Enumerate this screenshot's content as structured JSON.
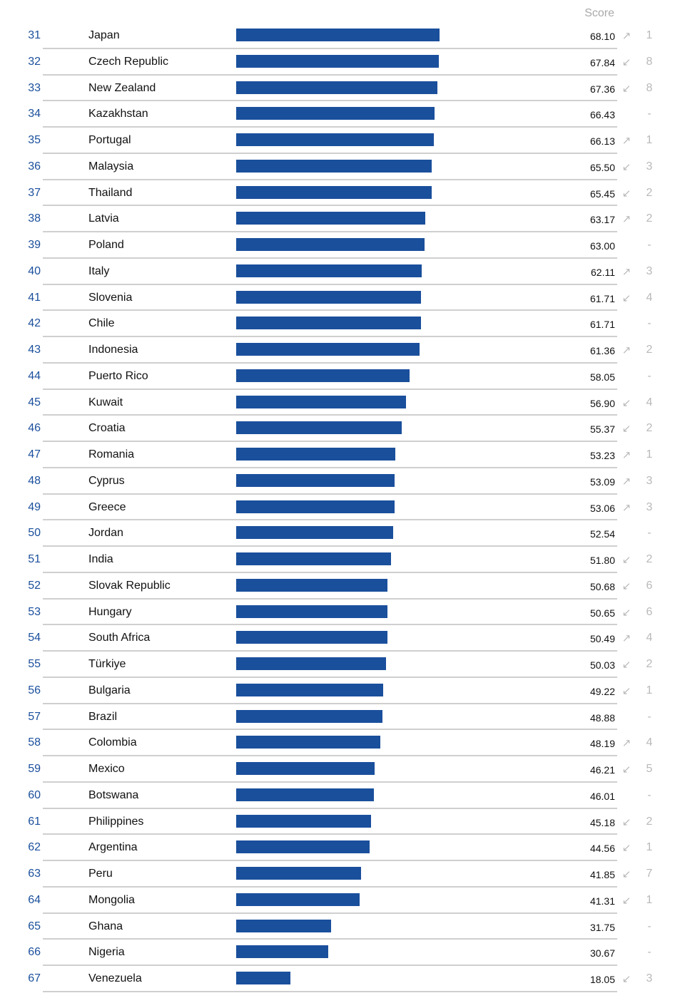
{
  "header": {
    "score_label": "Score"
  },
  "colors": {
    "bar": "#1a4f9c",
    "rank": "#1a4f9c",
    "muted": "#b9b9b9",
    "separator": "#cfcfcf"
  },
  "icons": {
    "up": "↗",
    "down": "↙"
  },
  "chart_data": {
    "type": "bar",
    "orientation": "horizontal",
    "title": "",
    "xlabel": "",
    "ylabel": "",
    "xlim": [
      0,
      100
    ],
    "value_column_label": "Score",
    "grid": false,
    "legend": "none",
    "rows": [
      {
        "rank": "31",
        "country": "Japan",
        "score": 68.1,
        "score_text": "68.10",
        "direction": "up",
        "change": "1"
      },
      {
        "rank": "32",
        "country": "Czech Republic",
        "score": 67.84,
        "score_text": "67.84",
        "direction": "down",
        "change": "8"
      },
      {
        "rank": "33",
        "country": "New Zealand",
        "score": 67.36,
        "score_text": "67.36",
        "direction": "down",
        "change": "8"
      },
      {
        "rank": "34",
        "country": "Kazakhstan",
        "score": 66.43,
        "score_text": "66.43",
        "direction": "none",
        "change": "-"
      },
      {
        "rank": "35",
        "country": "Portugal",
        "score": 66.13,
        "score_text": "66.13",
        "direction": "up",
        "change": "1"
      },
      {
        "rank": "36",
        "country": "Malaysia",
        "score": 65.5,
        "score_text": "65.50",
        "direction": "down",
        "change": "3"
      },
      {
        "rank": "37",
        "country": "Thailand",
        "score": 65.45,
        "score_text": "65.45",
        "direction": "down",
        "change": "2"
      },
      {
        "rank": "38",
        "country": "Latvia",
        "score": 63.17,
        "score_text": "63.17",
        "direction": "up",
        "change": "2"
      },
      {
        "rank": "39",
        "country": "Poland",
        "score": 63.0,
        "score_text": "63.00",
        "direction": "none",
        "change": "-"
      },
      {
        "rank": "40",
        "country": "Italy",
        "score": 62.11,
        "score_text": "62.11",
        "direction": "up",
        "change": "3"
      },
      {
        "rank": "41",
        "country": "Slovenia",
        "score": 61.71,
        "score_text": "61.71",
        "direction": "down",
        "change": "4"
      },
      {
        "rank": "42",
        "country": "Chile",
        "score": 61.71,
        "score_text": "61.71",
        "direction": "none",
        "change": "-"
      },
      {
        "rank": "43",
        "country": "Indonesia",
        "score": 61.36,
        "score_text": "61.36",
        "direction": "up",
        "change": "2"
      },
      {
        "rank": "44",
        "country": "Puerto Rico",
        "score": 58.05,
        "score_text": "58.05",
        "direction": "none",
        "change": "-"
      },
      {
        "rank": "45",
        "country": "Kuwait",
        "score": 56.9,
        "score_text": "56.90",
        "direction": "down",
        "change": "4"
      },
      {
        "rank": "46",
        "country": "Croatia",
        "score": 55.37,
        "score_text": "55.37",
        "direction": "down",
        "change": "2"
      },
      {
        "rank": "47",
        "country": "Romania",
        "score": 53.23,
        "score_text": "53.23",
        "direction": "up",
        "change": "1"
      },
      {
        "rank": "48",
        "country": "Cyprus",
        "score": 53.09,
        "score_text": "53.09",
        "direction": "up",
        "change": "3"
      },
      {
        "rank": "49",
        "country": "Greece",
        "score": 53.06,
        "score_text": "53.06",
        "direction": "up",
        "change": "3"
      },
      {
        "rank": "50",
        "country": "Jordan",
        "score": 52.54,
        "score_text": "52.54",
        "direction": "none",
        "change": "-"
      },
      {
        "rank": "51",
        "country": "India",
        "score": 51.8,
        "score_text": "51.80",
        "direction": "down",
        "change": "2"
      },
      {
        "rank": "52",
        "country": "Slovak Republic",
        "score": 50.68,
        "score_text": "50.68",
        "direction": "down",
        "change": "6"
      },
      {
        "rank": "53",
        "country": "Hungary",
        "score": 50.65,
        "score_text": "50.65",
        "direction": "down",
        "change": "6"
      },
      {
        "rank": "54",
        "country": "South Africa",
        "score": 50.49,
        "score_text": "50.49",
        "direction": "up",
        "change": "4"
      },
      {
        "rank": "55",
        "country": "Türkiye",
        "score": 50.03,
        "score_text": "50.03",
        "direction": "down",
        "change": "2"
      },
      {
        "rank": "56",
        "country": "Bulgaria",
        "score": 49.22,
        "score_text": "49.22",
        "direction": "down",
        "change": "1"
      },
      {
        "rank": "57",
        "country": "Brazil",
        "score": 48.88,
        "score_text": "48.88",
        "direction": "none",
        "change": "-"
      },
      {
        "rank": "58",
        "country": "Colombia",
        "score": 48.19,
        "score_text": "48.19",
        "direction": "up",
        "change": "4"
      },
      {
        "rank": "59",
        "country": "Mexico",
        "score": 46.21,
        "score_text": "46.21",
        "direction": "down",
        "change": "5"
      },
      {
        "rank": "60",
        "country": "Botswana",
        "score": 46.01,
        "score_text": "46.01",
        "direction": "none",
        "change": "-"
      },
      {
        "rank": "61",
        "country": "Philippines",
        "score": 45.18,
        "score_text": "45.18",
        "direction": "down",
        "change": "2"
      },
      {
        "rank": "62",
        "country": "Argentina",
        "score": 44.56,
        "score_text": "44.56",
        "direction": "down",
        "change": "1"
      },
      {
        "rank": "63",
        "country": "Peru",
        "score": 41.85,
        "score_text": "41.85",
        "direction": "down",
        "change": "7"
      },
      {
        "rank": "64",
        "country": "Mongolia",
        "score": 41.31,
        "score_text": "41.31",
        "direction": "down",
        "change": "1"
      },
      {
        "rank": "65",
        "country": "Ghana",
        "score": 31.75,
        "score_text": "31.75",
        "direction": "none",
        "change": "-"
      },
      {
        "rank": "66",
        "country": "Nigeria",
        "score": 30.67,
        "score_text": "30.67",
        "direction": "none",
        "change": "-"
      },
      {
        "rank": "67",
        "country": "Venezuela",
        "score": 18.05,
        "score_text": "18.05",
        "direction": "down",
        "change": "3"
      }
    ]
  }
}
